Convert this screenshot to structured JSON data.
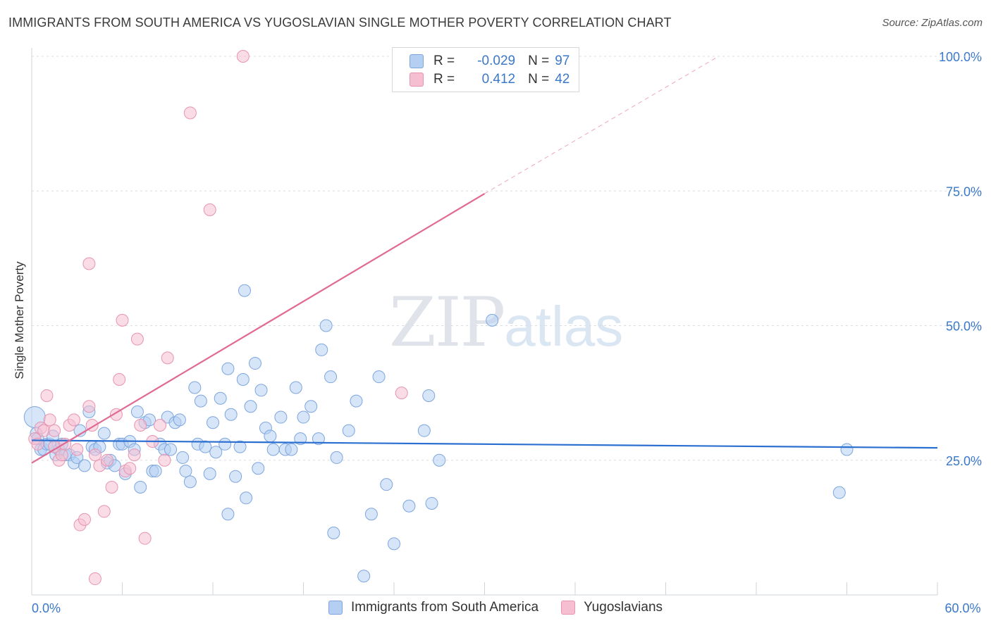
{
  "title": "IMMIGRANTS FROM SOUTH AMERICA VS YUGOSLAVIAN SINGLE MOTHER POVERTY CORRELATION CHART",
  "source": "Source: ZipAtlas.com",
  "watermark": {
    "zip": "ZIP",
    "atlas": "atlas"
  },
  "legend": {
    "rows": [
      {
        "r_label": "R =",
        "r_value": "-0.029",
        "n_label": "N =",
        "n_value": "97"
      },
      {
        "r_label": "R =",
        "r_value": "0.412",
        "n_label": "N =",
        "n_value": "42"
      }
    ]
  },
  "colors": {
    "blue_fill": "#b5cff2",
    "blue_stroke": "#7ea6de",
    "blue_line": "#2b6fd1",
    "pink_fill": "#f6bfd1",
    "pink_stroke": "#e894b0",
    "pink_line": "#e06a93",
    "grid": "#d9dde3",
    "tick_label": "#3a78c8"
  },
  "chart_data": {
    "type": "scatter",
    "title": "IMMIGRANTS FROM SOUTH AMERICA VS YUGOSLAVIAN SINGLE MOTHER POVERTY CORRELATION CHART",
    "xlabel": "",
    "ylabel": "Single Mother Poverty",
    "xlim": [
      0,
      60
    ],
    "ylim": [
      0,
      100
    ],
    "x_tick_labels": [
      {
        "value": 0,
        "label": "0.0%"
      },
      {
        "value": 60,
        "label": "60.0%"
      }
    ],
    "y_tick_labels": [
      {
        "value": 25,
        "label": "25.0%"
      },
      {
        "value": 50,
        "label": "50.0%"
      },
      {
        "value": 75,
        "label": "75.0%"
      },
      {
        "value": 100,
        "label": "100.0%"
      }
    ],
    "series": [
      {
        "name": "Immigrants from South America",
        "color": "blue",
        "trend": {
          "x": [
            0,
            60
          ],
          "y": [
            28.7,
            27.3
          ]
        },
        "points": [
          [
            0.2,
            33
          ],
          [
            0.3,
            30
          ],
          [
            0.4,
            29
          ],
          [
            0.6,
            27
          ],
          [
            0.8,
            27
          ],
          [
            1.0,
            28
          ],
          [
            1.2,
            28
          ],
          [
            1.4,
            29.5
          ],
          [
            1.6,
            26
          ],
          [
            1.8,
            27
          ],
          [
            2.0,
            28
          ],
          [
            2.2,
            26
          ],
          [
            2.5,
            26
          ],
          [
            2.8,
            24.5
          ],
          [
            3.0,
            25.5
          ],
          [
            3.2,
            30.5
          ],
          [
            3.5,
            24
          ],
          [
            3.8,
            34
          ],
          [
            4.0,
            27.5
          ],
          [
            4.2,
            27
          ],
          [
            4.5,
            27.5
          ],
          [
            4.8,
            30
          ],
          [
            5.0,
            24.5
          ],
          [
            5.2,
            25
          ],
          [
            5.5,
            24
          ],
          [
            5.8,
            28
          ],
          [
            6.0,
            28
          ],
          [
            6.2,
            22.5
          ],
          [
            6.5,
            28.5
          ],
          [
            6.8,
            27
          ],
          [
            7.0,
            34
          ],
          [
            7.2,
            20
          ],
          [
            7.5,
            32
          ],
          [
            7.8,
            32.5
          ],
          [
            8.0,
            23
          ],
          [
            8.2,
            23
          ],
          [
            8.5,
            28
          ],
          [
            8.8,
            27
          ],
          [
            9.0,
            33
          ],
          [
            9.2,
            27
          ],
          [
            9.5,
            32
          ],
          [
            9.8,
            32.5
          ],
          [
            10.0,
            25.5
          ],
          [
            10.2,
            23
          ],
          [
            10.5,
            21
          ],
          [
            10.8,
            38.5
          ],
          [
            11.0,
            28
          ],
          [
            11.2,
            36
          ],
          [
            11.5,
            27.5
          ],
          [
            11.8,
            22.5
          ],
          [
            12.0,
            32
          ],
          [
            12.2,
            26.5
          ],
          [
            12.5,
            36.5
          ],
          [
            12.8,
            28
          ],
          [
            13.0,
            42
          ],
          [
            13.2,
            33.5
          ],
          [
            13.5,
            22
          ],
          [
            13.8,
            27.5
          ],
          [
            14.0,
            40
          ],
          [
            14.2,
            18
          ],
          [
            14.5,
            35
          ],
          [
            14.8,
            43
          ],
          [
            15.0,
            23.5
          ],
          [
            15.2,
            38
          ],
          [
            15.5,
            31
          ],
          [
            15.8,
            29.5
          ],
          [
            16.0,
            27
          ],
          [
            16.5,
            33
          ],
          [
            16.8,
            27
          ],
          [
            17.2,
            27
          ],
          [
            17.5,
            38.5
          ],
          [
            17.8,
            29
          ],
          [
            18.0,
            33
          ],
          [
            18.5,
            35
          ],
          [
            19.0,
            29
          ],
          [
            19.2,
            45.5
          ],
          [
            19.5,
            50
          ],
          [
            19.8,
            40.5
          ],
          [
            20.0,
            11.5
          ],
          [
            20.2,
            25.5
          ],
          [
            21.0,
            30.5
          ],
          [
            21.5,
            36
          ],
          [
            22.0,
            3.5
          ],
          [
            22.5,
            15
          ],
          [
            23.0,
            40.5
          ],
          [
            23.5,
            20.5
          ],
          [
            24.0,
            9.5
          ],
          [
            25.0,
            16.5
          ],
          [
            26.0,
            30.5
          ],
          [
            26.3,
            37
          ],
          [
            26.5,
            17
          ],
          [
            27.0,
            25
          ],
          [
            30.5,
            51
          ],
          [
            54.0,
            27
          ],
          [
            53.5,
            19
          ],
          [
            14.1,
            56.5
          ],
          [
            13.0,
            15
          ]
        ]
      },
      {
        "name": "Yugoslavians",
        "color": "pink",
        "trend": {
          "x": [
            0,
            30
          ],
          "y": [
            24.5,
            74.5
          ]
        },
        "trend_extension": {
          "x": [
            30,
            45.5
          ],
          "y": [
            74.5,
            100
          ]
        },
        "points": [
          [
            0.2,
            29
          ],
          [
            0.4,
            28
          ],
          [
            0.6,
            31
          ],
          [
            0.8,
            30.5
          ],
          [
            1.0,
            37
          ],
          [
            1.2,
            32.5
          ],
          [
            1.5,
            30.5
          ],
          [
            1.8,
            25
          ],
          [
            2.0,
            26
          ],
          [
            2.5,
            31.5
          ],
          [
            2.8,
            32.5
          ],
          [
            3.0,
            27
          ],
          [
            3.2,
            13
          ],
          [
            3.5,
            14
          ],
          [
            3.8,
            35
          ],
          [
            4.0,
            31.5
          ],
          [
            4.2,
            26
          ],
          [
            4.5,
            24
          ],
          [
            4.8,
            15.5
          ],
          [
            5.0,
            25
          ],
          [
            5.3,
            20
          ],
          [
            5.6,
            33.5
          ],
          [
            5.8,
            40
          ],
          [
            6.0,
            51
          ],
          [
            6.2,
            23
          ],
          [
            6.5,
            23.5
          ],
          [
            7.0,
            47.5
          ],
          [
            7.2,
            31.5
          ],
          [
            7.5,
            10.5
          ],
          [
            8.0,
            28.5
          ],
          [
            8.5,
            31.5
          ],
          [
            8.8,
            25
          ],
          [
            9.0,
            44
          ],
          [
            10.5,
            89.5
          ],
          [
            11.8,
            71.5
          ],
          [
            14.0,
            100
          ],
          [
            3.8,
            61.5
          ],
          [
            4.2,
            3
          ],
          [
            24.5,
            37.5
          ],
          [
            1.5,
            27.5
          ],
          [
            2.2,
            28
          ],
          [
            6.8,
            26
          ]
        ]
      }
    ]
  },
  "bottom_legend": [
    {
      "label": "Immigrants from South America"
    },
    {
      "label": "Yugoslavians"
    }
  ]
}
